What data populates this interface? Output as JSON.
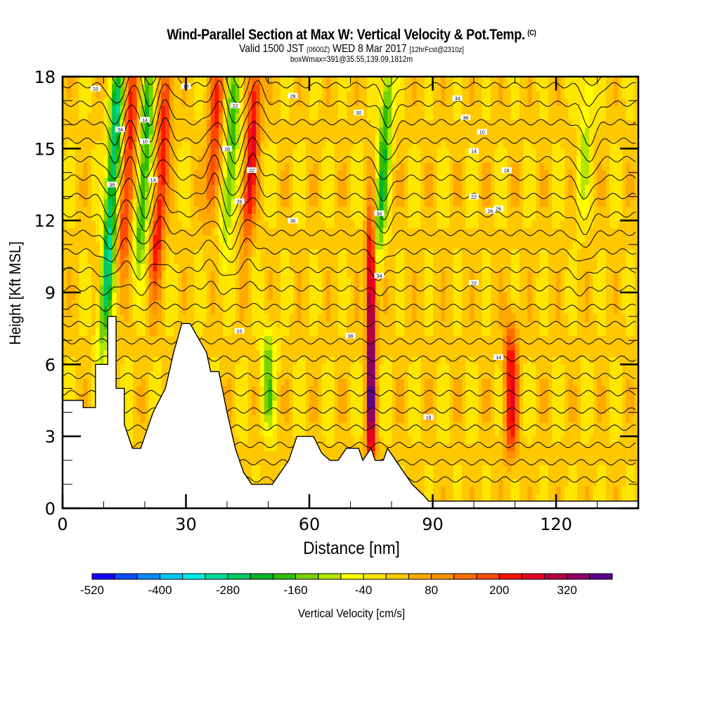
{
  "header": {
    "title": "Wind-Parallel Section at Max W: Vertical Velocity & Pot.Temp.",
    "copyright": "(C)",
    "valid_prefix": "Valid 1500 JST",
    "valid_utc": "(0600Z)",
    "valid_date": "WED 8 Mar 2017",
    "forecast": "[12hrFcst@2310z]",
    "box_info": "boxWmax=391@35.55,139.09,1812m"
  },
  "chart_data": {
    "type": "heatmap",
    "title": "Wind-Parallel Section at Max W: Vertical Velocity & Pot.Temp.",
    "xlabel": "Distance [nm]",
    "ylabel": "Height [Kft MSL]",
    "xlim": [
      0,
      140
    ],
    "ylim": [
      0,
      18
    ],
    "xticks": [
      0,
      30,
      60,
      90,
      120
    ],
    "yticks": [
      0,
      3,
      6,
      9,
      12,
      15,
      18
    ],
    "grid": false,
    "colorbar": {
      "label": "Vertical Velocity [cm/s]",
      "placement": "bottom",
      "levels": [
        -520,
        -480,
        -440,
        -400,
        -360,
        -320,
        -280,
        -240,
        -200,
        -160,
        -120,
        -80,
        -40,
        0,
        40,
        80,
        120,
        160,
        200,
        240,
        280,
        320,
        360,
        400
      ],
      "tick_labels": [
        "-520",
        "-400",
        "-280",
        "-160",
        "-40",
        "80",
        "200",
        "320"
      ],
      "colors": [
        "#1400ff",
        "#0a4cff",
        "#0a8cff",
        "#00c8ff",
        "#00f0e6",
        "#00dc9b",
        "#00c864",
        "#00b428",
        "#32be00",
        "#78d200",
        "#b4e600",
        "#ffff00",
        "#ffe600",
        "#ffc800",
        "#ffaa00",
        "#ff9100",
        "#ff6e00",
        "#ff4b00",
        "#ff1400",
        "#e6001e",
        "#b40041",
        "#8c0064",
        "#5a008c"
      ]
    },
    "velocity_features": [
      {
        "x_nm": 12,
        "kind": "downdraft",
        "peak_cms": -300,
        "z_range_kft": [
          8,
          18
        ]
      },
      {
        "x_nm": 16,
        "kind": "updraft",
        "peak_cms": 220,
        "z_range_kft": [
          11,
          18
        ]
      },
      {
        "x_nm": 20,
        "kind": "downdraft",
        "peak_cms": -220,
        "z_range_kft": [
          11,
          18
        ]
      },
      {
        "x_nm": 24,
        "kind": "updraft",
        "peak_cms": 220,
        "z_range_kft": [
          10,
          18
        ]
      },
      {
        "x_nm": 37,
        "kind": "updraft",
        "peak_cms": 200,
        "z_range_kft": [
          13,
          18
        ]
      },
      {
        "x_nm": 41,
        "kind": "downdraft",
        "peak_cms": -200,
        "z_range_kft": [
          12,
          18
        ]
      },
      {
        "x_nm": 46,
        "kind": "updraft",
        "peak_cms": 240,
        "z_range_kft": [
          12,
          18
        ]
      },
      {
        "x_nm": 50,
        "kind": "downdraft",
        "peak_cms": -150,
        "z_range_kft": [
          4,
          7
        ]
      },
      {
        "x_nm": 78,
        "kind": "downdraft",
        "peak_cms": -200,
        "z_range_kft": [
          11,
          18
        ]
      },
      {
        "x_nm": 75,
        "kind": "updraft",
        "peak_cms": 391,
        "z_range_kft": [
          3,
          11
        ]
      },
      {
        "x_nm": 109,
        "kind": "updraft",
        "peak_cms": 220,
        "z_range_kft": [
          3,
          7
        ]
      },
      {
        "x_nm": 127,
        "kind": "downdraft",
        "peak_cms": -100,
        "z_range_kft": [
          13,
          18
        ]
      }
    ],
    "theta_contour_labels": [
      "10",
      "14",
      "18",
      "22",
      "26",
      "30",
      "34",
      "38"
    ],
    "terrain_kft": [
      [
        0,
        4.5
      ],
      [
        5,
        4.5
      ],
      [
        5,
        4.2
      ],
      [
        8,
        4.2
      ],
      [
        8,
        6
      ],
      [
        11,
        6
      ],
      [
        11,
        8
      ],
      [
        13,
        8
      ],
      [
        13,
        5
      ],
      [
        15,
        5
      ],
      [
        15,
        3.5
      ],
      [
        17,
        2.5
      ],
      [
        19,
        2.5
      ],
      [
        20,
        3
      ],
      [
        22,
        4
      ],
      [
        25,
        5
      ],
      [
        27,
        6.5
      ],
      [
        29,
        7.7
      ],
      [
        31,
        7.7
      ],
      [
        33,
        7.1
      ],
      [
        35,
        6.5
      ],
      [
        36,
        5.7
      ],
      [
        38,
        5.7
      ],
      [
        40,
        4
      ],
      [
        42,
        2.5
      ],
      [
        44,
        1.5
      ],
      [
        46,
        1
      ],
      [
        51,
        1
      ],
      [
        53,
        1.5
      ],
      [
        55,
        2
      ],
      [
        57,
        3
      ],
      [
        61,
        3
      ],
      [
        63,
        2.3
      ],
      [
        65,
        2
      ],
      [
        67,
        2
      ],
      [
        69,
        2.5
      ],
      [
        72,
        2.5
      ],
      [
        73,
        2
      ],
      [
        75,
        2.5
      ],
      [
        76,
        2
      ],
      [
        78,
        2
      ],
      [
        79,
        2.5
      ],
      [
        81,
        2
      ],
      [
        83,
        1.5
      ],
      [
        85,
        1
      ],
      [
        88,
        0.5
      ],
      [
        89,
        0.3
      ],
      [
        140,
        0.3
      ]
    ]
  }
}
